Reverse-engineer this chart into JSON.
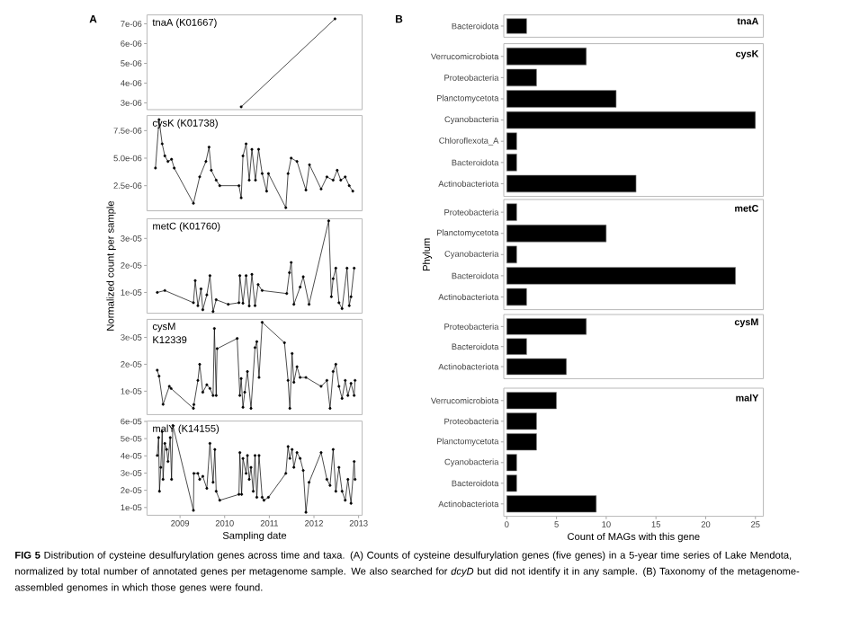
{
  "chart_data": [
    {
      "type": "line",
      "title": "tnaA (K01667)",
      "annotations": [
        "A"
      ],
      "color": "#000000",
      "marker": "circle",
      "tick_labels": "y",
      "x": [
        2010.37,
        2012.47
      ],
      "values": [
        2.8e-06,
        7.25e-06
      ],
      "xlim": [
        2008.26,
        2013.08
      ],
      "xticks": [
        2009,
        2010,
        2011,
        2012,
        2013
      ],
      "ylim": [
        2.66e-06,
        7.45e-06
      ],
      "yticks": [
        {
          "value": 3e-06,
          "label": "3e-06"
        },
        {
          "value": 4e-06,
          "label": "4e-06"
        },
        {
          "value": 5e-06,
          "label": "5e-06"
        },
        {
          "value": 6e-06,
          "label": "6e-06"
        },
        {
          "value": 7e-06,
          "label": "7e-06"
        }
      ]
    },
    {
      "type": "line",
      "title": "cysK (K01738)",
      "color": "#000000",
      "marker": "circle",
      "tick_labels": "y",
      "x": [
        2008.45,
        2008.53,
        2008.6,
        2008.66,
        2008.73,
        2008.81,
        2008.87,
        2009.3,
        2009.44,
        2009.58,
        2009.65,
        2009.7,
        2009.81,
        2009.89,
        2010.32,
        2010.37,
        2010.41,
        2010.48,
        2010.55,
        2010.61,
        2010.69,
        2010.76,
        2010.84,
        2010.94,
        2010.98,
        2011.37,
        2011.42,
        2011.49,
        2011.62,
        2011.82,
        2011.9,
        2012.16,
        2012.29,
        2012.43,
        2012.52,
        2012.6,
        2012.7,
        2012.79,
        2012.87
      ],
      "values": [
        4.1e-06,
        8.5e-06,
        6.3e-06,
        5.2e-06,
        4.7e-06,
        4.9e-06,
        4.1e-06,
        9e-07,
        3.3e-06,
        4.7e-06,
        6e-06,
        3.9e-06,
        3e-06,
        2.5e-06,
        2.5e-06,
        1.4e-06,
        5.2e-06,
        6.3e-06,
        3e-06,
        5.8e-06,
        3e-06,
        5.8e-06,
        3.6e-06,
        2e-06,
        3.6e-06,
        5e-07,
        3.6e-06,
        5e-06,
        4.7e-06,
        2.1e-06,
        4.4e-06,
        2.2e-06,
        3.3e-06,
        3e-06,
        3.9e-06,
        3e-06,
        3.3e-06,
        2.5e-06,
        2e-06
      ],
      "xlim": [
        2008.26,
        2013.08
      ],
      "xticks": [
        2009,
        2010,
        2011,
        2012,
        2013
      ],
      "ylim": [
        2.2e-07,
        8.87e-06
      ],
      "yticks": [
        {
          "value": 2.5e-06,
          "label": "2.5e-06"
        },
        {
          "value": 5e-06,
          "label": "5.0e-06"
        },
        {
          "value": 7.5e-06,
          "label": "7.5e-06"
        }
      ]
    },
    {
      "type": "line",
      "title": "metC (K01760)",
      "ylabel": "Normalized count per sample",
      "color": "#000000",
      "marker": "circle",
      "tick_labels": "y",
      "x": [
        2008.49,
        2008.66,
        2009.3,
        2009.34,
        2009.4,
        2009.47,
        2009.51,
        2009.6,
        2009.67,
        2009.74,
        2009.81,
        2010.08,
        2010.32,
        2010.34,
        2010.41,
        2010.48,
        2010.55,
        2010.61,
        2010.68,
        2010.75,
        2010.84,
        2011.39,
        2011.45,
        2011.49,
        2011.55,
        2011.69,
        2011.76,
        2011.89,
        2012.33,
        2012.39,
        2012.43,
        2012.49,
        2012.56,
        2012.63,
        2012.74,
        2012.79,
        2012.83,
        2012.9
      ],
      "values": [
        1e-05,
        1.07e-05,
        6.2e-06,
        1.44e-05,
        5.1e-06,
        1.13e-05,
        3.6e-06,
        9.1e-06,
        1.62e-05,
        2.9e-06,
        7.3e-06,
        5.6e-06,
        6.2e-06,
        1.62e-05,
        6e-06,
        1.62e-05,
        5e-06,
        1.67e-05,
        5.1e-06,
        1.29e-05,
        1.07e-05,
        9.6e-06,
        1.73e-05,
        2.11e-05,
        5.6e-06,
        1.2e-05,
        1.58e-05,
        5.6e-06,
        3.65e-05,
        8.4e-06,
        1.51e-05,
        1.9e-05,
        6.2e-06,
        4e-06,
        1.9e-05,
        5.1e-06,
        8.4e-06,
        1.9e-05
      ],
      "xlim": [
        2008.26,
        2013.08
      ],
      "xticks": [
        2009,
        2010,
        2011,
        2012,
        2013
      ],
      "ylim": [
        2.3e-06,
        3.73e-05
      ],
      "yticks": [
        {
          "value": 1e-05,
          "label": "1e-05"
        },
        {
          "value": 2e-05,
          "label": "2e-05"
        },
        {
          "value": 3e-05,
          "label": "3e-05"
        }
      ]
    },
    {
      "type": "line",
      "title": "cysM",
      "subtitle": "K12339",
      "color": "#000000",
      "marker": "circle",
      "tick_labels": "y",
      "x": [
        2008.49,
        2008.53,
        2008.62,
        2008.76,
        2008.8,
        2009.3,
        2009.31,
        2009.4,
        2009.44,
        2009.51,
        2009.6,
        2009.67,
        2009.74,
        2009.77,
        2009.81,
        2009.83,
        2010.28,
        2010.34,
        2010.37,
        2010.41,
        2010.45,
        2010.51,
        2010.59,
        2010.68,
        2010.72,
        2010.77,
        2010.84,
        2011.34,
        2011.42,
        2011.46,
        2011.51,
        2011.55,
        2011.62,
        2011.69,
        2011.82,
        2012.16,
        2012.29,
        2012.36,
        2012.43,
        2012.49,
        2012.56,
        2012.63,
        2012.7,
        2012.76,
        2012.83,
        2012.9,
        2012.92
      ],
      "values": [
        1.78e-05,
        1.56e-05,
        5.1e-06,
        1.18e-05,
        1.1e-05,
        3.6e-06,
        5e-06,
        1.4e-05,
        2e-05,
        9.6e-06,
        1.24e-05,
        1.1e-05,
        8.4e-06,
        3.33e-05,
        8.4e-06,
        2.58e-05,
        2.96e-05,
        8.4e-06,
        1.47e-05,
        4e-06,
        9.6e-06,
        1.73e-05,
        3.6e-06,
        2.62e-05,
        2.84e-05,
        1.51e-05,
        3.56e-05,
        2.8e-05,
        1.4e-05,
        3.6e-06,
        2.4e-05,
        1.33e-05,
        1.91e-05,
        1.51e-05,
        1.51e-05,
        1.18e-05,
        1.4e-05,
        3.6e-06,
        1.73e-05,
        2e-05,
        1.18e-05,
        7.3e-06,
        1.4e-05,
        8.4e-06,
        1.29e-05,
        8.4e-06,
        1.4e-05
      ],
      "xlim": [
        2008.26,
        2013.08
      ],
      "xticks": [
        2009,
        2010,
        2011,
        2012,
        2013
      ],
      "ylim": [
        1.3e-06,
        3.67e-05
      ],
      "yticks": [
        {
          "value": 1e-05,
          "label": "1e-05"
        },
        {
          "value": 2e-05,
          "label": "2e-05"
        },
        {
          "value": 3e-05,
          "label": "3e-05"
        }
      ]
    },
    {
      "type": "line",
      "title": "malY (K14155)",
      "xlabel": "Sampling date",
      "color": "#000000",
      "marker": "circle",
      "x": [
        2008.49,
        2008.52,
        2008.54,
        2008.57,
        2008.6,
        2008.62,
        2008.66,
        2008.7,
        2008.73,
        2008.78,
        2008.81,
        2008.84,
        2009.3,
        2009.31,
        2009.4,
        2009.44,
        2009.51,
        2009.6,
        2009.67,
        2009.74,
        2009.78,
        2009.81,
        2009.89,
        2010.32,
        2010.34,
        2010.38,
        2010.41,
        2010.48,
        2010.51,
        2010.55,
        2010.59,
        2010.64,
        2010.68,
        2010.72,
        2010.77,
        2010.84,
        2010.88,
        2010.98,
        2011.37,
        2011.42,
        2011.46,
        2011.51,
        2011.55,
        2011.62,
        2011.69,
        2011.76,
        2011.82,
        2011.89,
        2012.16,
        2012.29,
        2012.36,
        2012.43,
        2012.49,
        2012.56,
        2012.63,
        2012.7,
        2012.76,
        2012.83,
        2012.9,
        2012.92
      ],
      "values": [
        4.02e-05,
        5.06e-05,
        1.94e-05,
        3.33e-05,
        5.41e-05,
        2.63e-05,
        4.72e-05,
        4.37e-05,
        3.67e-05,
        5.06e-05,
        2.63e-05,
        5.76e-05,
        8.3e-06,
        2.98e-05,
        2.98e-05,
        2.63e-05,
        2.81e-05,
        2.11e-05,
        4.72e-05,
        2.46e-05,
        4.37e-05,
        1.94e-05,
        1.42e-05,
        1.76e-05,
        4.19e-05,
        1.76e-05,
        3.85e-05,
        2.98e-05,
        4.02e-05,
        2.63e-05,
        3.33e-05,
        1.94e-05,
        4.02e-05,
        1.59e-05,
        4.02e-05,
        1.59e-05,
        1.42e-05,
        1.59e-05,
        2.98e-05,
        4.54e-05,
        3.85e-05,
        4.37e-05,
        3.33e-05,
        4.19e-05,
        3.85e-05,
        3.15e-05,
        7.2e-06,
        2.46e-05,
        4.19e-05,
        2.63e-05,
        2.28e-05,
        4.37e-05,
        1.94e-05,
        3.33e-05,
        1.94e-05,
        1.42e-05,
        2.63e-05,
        1.24e-05,
        3.67e-05,
        2.63e-05
      ],
      "xlim": [
        2008.26,
        2013.08
      ],
      "xticks": [
        2009,
        2010,
        2011,
        2012,
        2013
      ],
      "ylim": [
        5.5e-06,
        6.02e-05
      ],
      "yticks": [
        {
          "value": 1e-05,
          "label": "1e-05"
        },
        {
          "value": 2e-05,
          "label": "2e-05"
        },
        {
          "value": 3e-05,
          "label": "3e-05"
        },
        {
          "value": 4e-05,
          "label": "4e-05"
        },
        {
          "value": 5e-05,
          "label": "5e-05"
        },
        {
          "value": 6e-05,
          "label": "6e-05"
        }
      ]
    },
    {
      "type": "bar",
      "orientation": "horizontal",
      "title": "tnaA",
      "annotations": [
        "B"
      ],
      "color": "#000000",
      "tick_labels": "y",
      "categories": [
        "Bacteroidota"
      ],
      "values": [
        2
      ],
      "xlim": [
        -0.3,
        25.8
      ],
      "xticks": [
        0,
        5,
        10,
        15,
        20,
        25
      ]
    },
    {
      "type": "bar",
      "orientation": "horizontal",
      "title": "cysK",
      "color": "#000000",
      "tick_labels": "y",
      "categories": [
        "Verrucomicrobiota",
        "Proteobacteria",
        "Planctomycetota",
        "Cyanobacteria",
        "Chloroflexota_A",
        "Bacteroidota",
        "Actinobacteriota"
      ],
      "values": [
        8,
        3,
        11,
        25,
        1,
        1,
        13
      ],
      "xlim": [
        -0.3,
        25.8
      ],
      "xticks": [
        0,
        5,
        10,
        15,
        20,
        25
      ]
    },
    {
      "type": "bar",
      "orientation": "horizontal",
      "title": "metC",
      "ylabel": "Phylum",
      "color": "#000000",
      "tick_labels": "y",
      "categories": [
        "Proteobacteria",
        "Planctomycetota",
        "Cyanobacteria",
        "Bacteroidota",
        "Actinobacteriota"
      ],
      "values": [
        1,
        10,
        1,
        23,
        2
      ],
      "xlim": [
        -0.3,
        25.8
      ],
      "xticks": [
        0,
        5,
        10,
        15,
        20,
        25
      ]
    },
    {
      "type": "bar",
      "orientation": "horizontal",
      "title": "cysM",
      "color": "#000000",
      "tick_labels": "y",
      "categories": [
        "Proteobacteria",
        "Bacteroidota",
        "Actinobacteriota"
      ],
      "values": [
        8,
        2,
        6
      ],
      "xlim": [
        -0.3,
        25.8
      ],
      "xticks": [
        0,
        5,
        10,
        15,
        20,
        25
      ]
    },
    {
      "type": "bar",
      "orientation": "horizontal",
      "title": "malY",
      "xlabel": "Count of MAGs with this gene",
      "color": "#000000",
      "categories": [
        "Verrucomicrobiota",
        "Proteobacteria",
        "Planctomycetota",
        "Cyanobacteria",
        "Bacteroidota",
        "Actinobacteriota"
      ],
      "values": [
        5,
        3,
        3,
        1,
        1,
        9
      ],
      "xlim": [
        -0.3,
        25.8
      ],
      "xticks": [
        0,
        5,
        10,
        15,
        20,
        25
      ],
      "annotations": [
        "**FIG 5** Distribution of cysteine desulfurylation genes across time and taxa. (A) Counts of cysteine desulfurylation genes (five genes) in a 5-year time series of Lake Mendota, normalized by total number of annotated genes per metagenome sample. We also searched for *dcyD* but did not identify it in any sample. (B) Taxonomy of the metagenome-assembled genomes in which those genes were found."
      ]
    }
  ]
}
